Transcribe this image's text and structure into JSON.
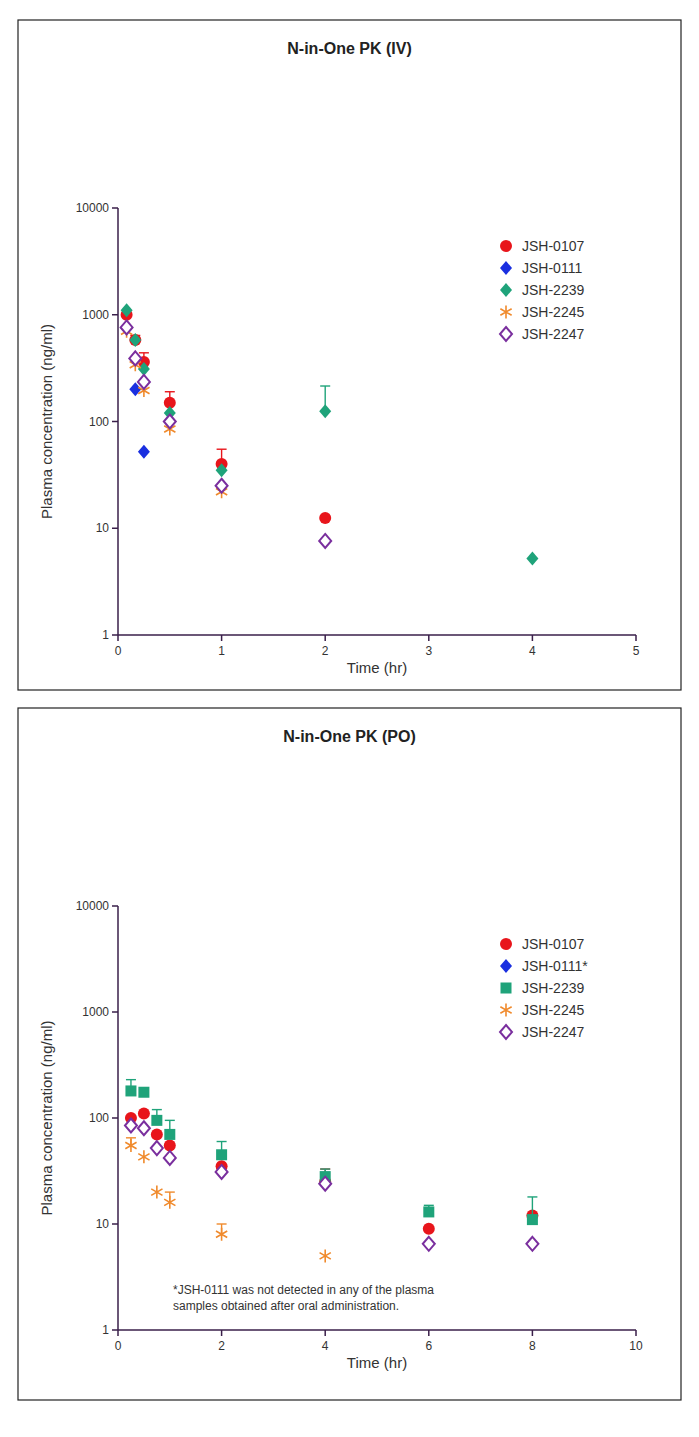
{
  "chart_data": [
    {
      "type": "scatter",
      "title": "N-in-One PK (IV)",
      "x_label": "Time (hr)",
      "y_label": "Plasma concentration (ng/ml)",
      "log": "y",
      "legend": "upper right",
      "line_style": "none",
      "x": [
        0.083,
        0.167,
        0.25,
        0.5,
        1,
        2,
        4
      ],
      "xlim": [
        0,
        5
      ],
      "xticks": [
        0,
        1,
        2,
        3,
        4,
        5
      ],
      "ylim": [
        1,
        10000
      ],
      "yticks": [
        1,
        10,
        100,
        1000,
        10000
      ],
      "series": [
        {
          "name": "JSH-0107",
          "color": "#e8151b",
          "marker": "circle",
          "values": [
            1000,
            580,
            360,
            150,
            40,
            12.5,
            null
          ],
          "errors": [
            null,
            60,
            80,
            40,
            15,
            null,
            null
          ]
        },
        {
          "name": "JSH-0111",
          "color": "#1a2fe0",
          "marker": "diamond",
          "values": [
            750,
            200,
            52,
            null,
            null,
            null,
            null
          ],
          "errors": [
            null,
            null,
            null,
            null,
            null,
            null,
            null
          ]
        },
        {
          "name": "JSH-2239",
          "color": "#1fa37a",
          "marker": "diamond",
          "values": [
            1100,
            580,
            310,
            120,
            35,
            125,
            5.2
          ],
          "errors": [
            null,
            null,
            null,
            null,
            null,
            90,
            null
          ]
        },
        {
          "name": "JSH-2245",
          "color": "#f08a2c",
          "marker": "star",
          "values": [
            700,
            340,
            195,
            85,
            22,
            null,
            null
          ],
          "errors": [
            null,
            null,
            null,
            null,
            null,
            null,
            null
          ]
        },
        {
          "name": "JSH-2247",
          "color": "#7a2f9e",
          "marker": "diamond-open",
          "values": [
            760,
            390,
            235,
            100,
            25,
            7.6,
            null
          ],
          "errors": [
            null,
            null,
            null,
            null,
            null,
            null,
            null
          ]
        }
      ]
    },
    {
      "type": "scatter",
      "title": "N-in-One PK (PO)",
      "x_label": "Time (hr)",
      "y_label": "Plasma concentration (ng/ml)",
      "log": "y",
      "legend": "upper right",
      "line_style": "none",
      "x": [
        0.25,
        0.5,
        0.75,
        1,
        2,
        4,
        6,
        8
      ],
      "xlim": [
        0,
        10
      ],
      "xticks": [
        0,
        2,
        4,
        6,
        8,
        10
      ],
      "ylim": [
        1,
        10000
      ],
      "yticks": [
        1,
        10,
        100,
        1000,
        10000
      ],
      "annotation": [
        "*JSH-0111 was not detected in any of the plasma",
        "samples obtained after oral administration."
      ],
      "series": [
        {
          "name": "JSH-0107",
          "color": "#e8151b",
          "marker": "circle",
          "values": [
            100,
            110,
            70,
            55,
            35,
            25,
            9,
            12
          ],
          "errors": [
            null,
            null,
            null,
            null,
            null,
            8,
            null,
            null
          ]
        },
        {
          "name": "JSH-0111*",
          "color": "#1a2fe0",
          "marker": "diamond",
          "values": [
            null,
            null,
            null,
            null,
            null,
            null,
            null,
            null
          ],
          "errors": [
            null,
            null,
            null,
            null,
            null,
            null,
            null,
            null
          ]
        },
        {
          "name": "JSH-2239",
          "color": "#1fa37a",
          "marker": "square",
          "values": [
            180,
            175,
            95,
            70,
            45,
            28,
            13,
            11
          ],
          "errors": [
            50,
            null,
            25,
            25,
            15,
            5,
            2,
            7
          ]
        },
        {
          "name": "JSH-2245",
          "color": "#f08a2c",
          "marker": "star",
          "values": [
            55,
            43,
            20,
            16,
            8,
            5,
            null,
            null
          ],
          "errors": [
            10,
            null,
            null,
            4,
            2,
            null,
            null,
            null
          ]
        },
        {
          "name": "JSH-2247",
          "color": "#7a2f9e",
          "marker": "diamond-open",
          "values": [
            85,
            80,
            52,
            42,
            31,
            24,
            6.5,
            6.5
          ],
          "errors": [
            null,
            null,
            null,
            null,
            null,
            null,
            null,
            null
          ]
        }
      ]
    }
  ]
}
